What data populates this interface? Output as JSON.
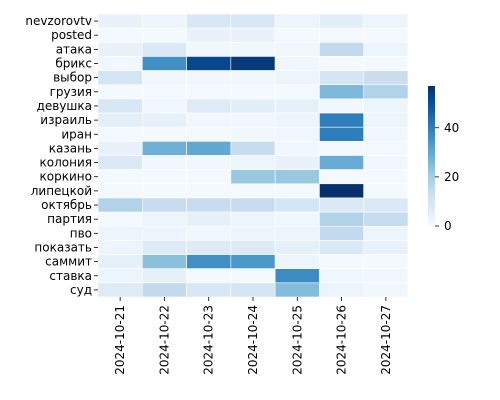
{
  "chart_data": {
    "type": "heatmap",
    "title": "",
    "xlabel": "",
    "ylabel": "",
    "x": [
      "2024-10-21",
      "2024-10-22",
      "2024-10-23",
      "2024-10-24",
      "2024-10-25",
      "2024-10-26",
      "2024-10-27"
    ],
    "y": [
      "nevzorovtv",
      "posted",
      "атака",
      "брикс",
      "выбор",
      "грузия",
      "девушка",
      "израиль",
      "иран",
      "казань",
      "колония",
      "коркино",
      "липецкой",
      "октябрь",
      "партия",
      "пво",
      "показать",
      "саммит",
      "ставка",
      "суд"
    ],
    "values": [
      [
        4,
        3,
        9,
        9,
        3,
        6,
        3
      ],
      [
        1,
        1,
        4,
        4,
        1,
        1,
        1
      ],
      [
        4,
        8,
        2,
        2,
        2,
        15,
        3
      ],
      [
        2,
        36,
        52,
        55,
        2,
        1,
        1
      ],
      [
        10,
        2,
        2,
        2,
        3,
        10,
        13
      ],
      [
        1,
        1,
        1,
        1,
        1,
        26,
        18
      ],
      [
        9,
        2,
        7,
        6,
        5,
        2,
        3
      ],
      [
        6,
        5,
        2,
        2,
        3,
        40,
        3
      ],
      [
        1,
        1,
        1,
        2,
        2,
        40,
        2
      ],
      [
        4,
        28,
        30,
        14,
        2,
        1,
        1
      ],
      [
        8,
        2,
        2,
        3,
        4,
        29,
        2
      ],
      [
        1,
        1,
        1,
        22,
        22,
        1,
        1
      ],
      [
        1,
        1,
        1,
        1,
        1,
        57,
        1
      ],
      [
        18,
        14,
        14,
        14,
        10,
        8,
        8
      ],
      [
        1,
        3,
        5,
        3,
        2,
        18,
        14
      ],
      [
        3,
        3,
        2,
        3,
        3,
        15,
        3
      ],
      [
        3,
        7,
        7,
        7,
        5,
        8,
        4
      ],
      [
        5,
        24,
        36,
        34,
        3,
        1,
        1
      ],
      [
        3,
        5,
        1,
        1,
        37,
        2,
        2
      ],
      [
        7,
        15,
        9,
        10,
        25,
        3,
        2
      ]
    ],
    "vmin": 0,
    "vmax": 57,
    "colormap": [
      "#f7fbff",
      "#deebf7",
      "#c6dbef",
      "#9ecae1",
      "#6baed6",
      "#4292c6",
      "#2171b5",
      "#08519c",
      "#08306b"
    ],
    "colorbar": {
      "ticks": [
        0,
        20,
        40
      ]
    },
    "grid": false,
    "cell_border_color": "#ffffff"
  }
}
